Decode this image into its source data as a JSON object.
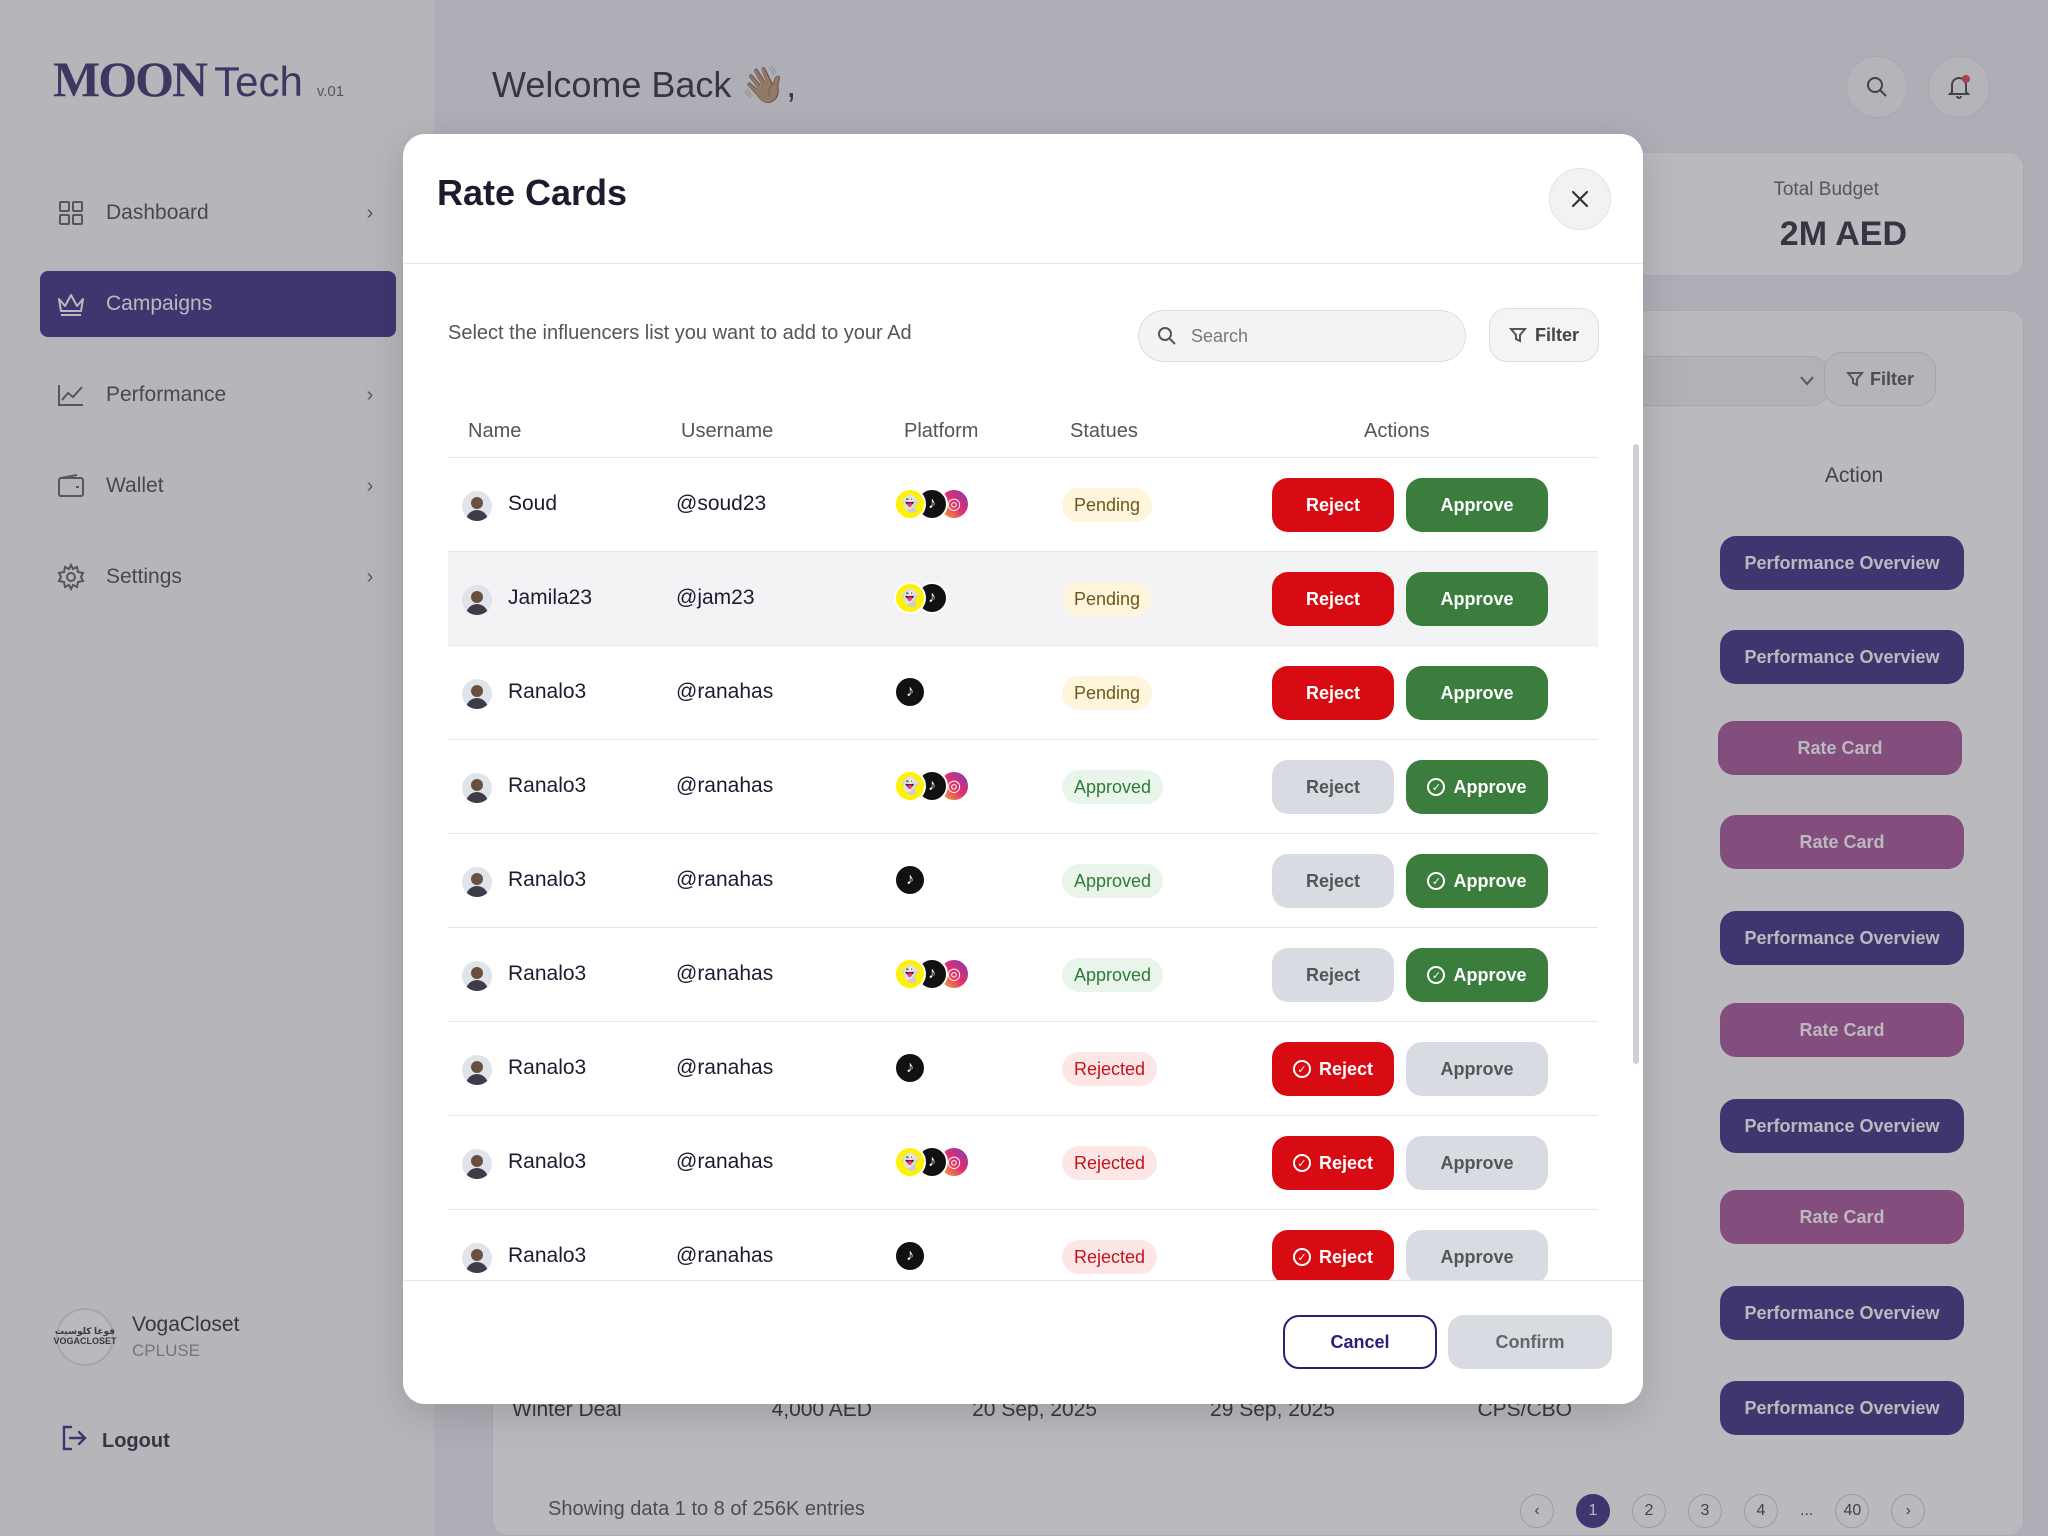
{
  "brand": {
    "name": "MOON",
    "suffix": "Tech",
    "version": "v.01"
  },
  "sidebar": {
    "items": [
      {
        "label": "Dashboard",
        "icon": "grid-icon",
        "chevron": "›"
      },
      {
        "label": "Campaigns",
        "icon": "crown-icon",
        "chevron": ""
      },
      {
        "label": "Performance",
        "icon": "chart-line-icon",
        "chevron": "›"
      },
      {
        "label": "Wallet",
        "icon": "wallet-icon",
        "chevron": "›"
      },
      {
        "label": "Settings",
        "icon": "gear-icon",
        "chevron": "›"
      }
    ],
    "active": "Campaigns",
    "profile": {
      "name": "VogaCloset",
      "role": "CPLUSE",
      "logo_text": "فوغا كلوسيت VOGACLOSET"
    },
    "logout_label": "Logout"
  },
  "header": {
    "welcome": "Welcome Back 👋🏽,"
  },
  "background": {
    "budget_label": "Total Budget",
    "budget_value": "2M AED",
    "filter_label": "Filter",
    "action_header": "Action",
    "action_buttons": [
      "Performance Overview",
      "Performance Overview",
      "Rate Card",
      "Rate Card",
      "Performance Overview",
      "Rate Card",
      "Performance Overview",
      "Rate Card",
      "Performance Overview",
      "Performance Overview"
    ],
    "last_row": {
      "name": "Winter Deal",
      "budget": "4,000 AED",
      "start": "20 Sep, 2025",
      "end": "29 Sep, 2025",
      "type": "CPS/CBO"
    },
    "showing": "Showing data 1 to 8 of  256K entries",
    "pager": {
      "prev": "‹",
      "pages": [
        "1",
        "2",
        "3",
        "4"
      ],
      "ellipsis": "...",
      "last": "40",
      "next": "›"
    }
  },
  "modal": {
    "title": "Rate Cards",
    "subtitle": "Select the influencers list you want to add to your Ad",
    "search_placeholder": "Search",
    "filter_label": "Filter",
    "columns": [
      "Name",
      "Username",
      "Platform",
      "Statues",
      "Actions"
    ],
    "reject_label": "Reject",
    "approve_label": "Approve",
    "rows": [
      {
        "name": "Soud",
        "username": "@soud23",
        "platforms": [
          "snapchat",
          "tiktok",
          "instagram"
        ],
        "status": "Pending"
      },
      {
        "name": "Jamila23",
        "username": "@jam23",
        "platforms": [
          "snapchat",
          "tiktok"
        ],
        "status": "Pending"
      },
      {
        "name": "Ranalo3",
        "username": "@ranahas",
        "platforms": [
          "tiktok"
        ],
        "status": "Pending"
      },
      {
        "name": "Ranalo3",
        "username": "@ranahas",
        "platforms": [
          "snapchat",
          "tiktok",
          "instagram"
        ],
        "status": "Approved"
      },
      {
        "name": "Ranalo3",
        "username": "@ranahas",
        "platforms": [
          "tiktok"
        ],
        "status": "Approved"
      },
      {
        "name": "Ranalo3",
        "username": "@ranahas",
        "platforms": [
          "snapchat",
          "tiktok",
          "instagram"
        ],
        "status": "Approved"
      },
      {
        "name": "Ranalo3",
        "username": "@ranahas",
        "platforms": [
          "tiktok"
        ],
        "status": "Rejected"
      },
      {
        "name": "Ranalo3",
        "username": "@ranahas",
        "platforms": [
          "snapchat",
          "tiktok",
          "instagram"
        ],
        "status": "Rejected"
      },
      {
        "name": "Ranalo3",
        "username": "@ranahas",
        "platforms": [
          "tiktok"
        ],
        "status": "Rejected"
      }
    ],
    "cancel_label": "Cancel",
    "confirm_label": "Confirm"
  },
  "colors": {
    "primary": "#2e1c78",
    "rate_card": "#a0448f",
    "reject": "#d80b12",
    "approve": "#3a7d3c"
  }
}
